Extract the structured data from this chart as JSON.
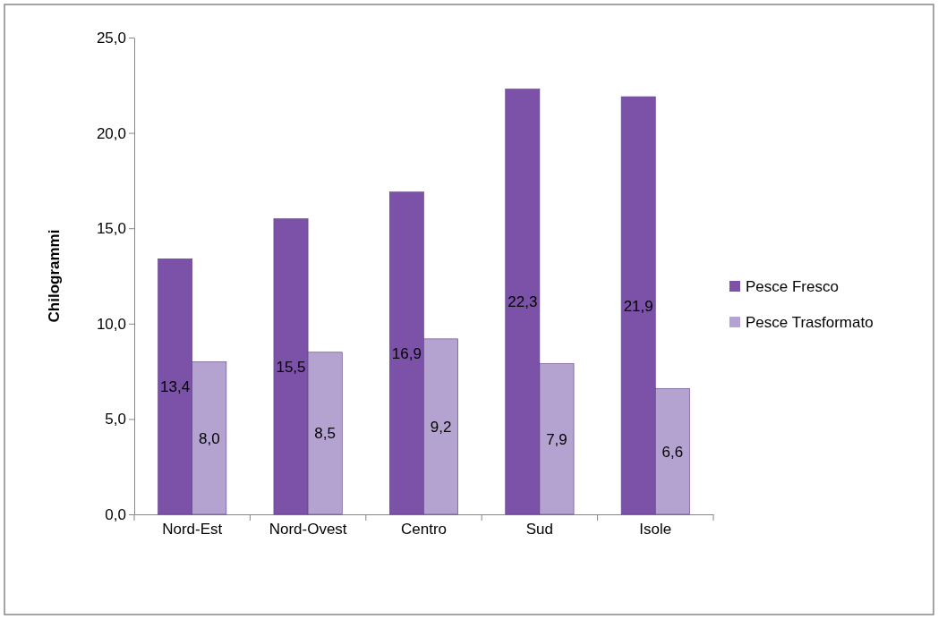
{
  "chart_data": {
    "type": "bar",
    "ylabel": "Chilogrammi",
    "categories": [
      "Nord-Est",
      "Nord-Ovest",
      "Centro",
      "Sud",
      "Isole"
    ],
    "series": [
      {
        "name": "Pesce Fresco",
        "color": "#7b52a8",
        "values": [
          13.4,
          15.5,
          16.9,
          22.3,
          21.9
        ],
        "value_labels": [
          "13,4",
          "15,5",
          "16,9",
          "22,3",
          "21,9"
        ]
      },
      {
        "name": "Pesce Trasformato",
        "color": "#b4a3d0",
        "values": [
          8.0,
          8.5,
          9.2,
          7.9,
          6.6
        ],
        "value_labels": [
          "8,0",
          "8,5",
          "9,2",
          "7,9",
          "6,6"
        ]
      }
    ],
    "ylim": [
      0,
      25
    ],
    "yticks": [
      {
        "value": 0,
        "label": "0,0"
      },
      {
        "value": 5,
        "label": "5,0"
      },
      {
        "value": 10,
        "label": "10,0"
      },
      {
        "value": 15,
        "label": "15,0"
      },
      {
        "value": 20,
        "label": "20,0"
      },
      {
        "value": 25,
        "label": "25,0"
      }
    ],
    "grid": false,
    "legend": "right"
  }
}
